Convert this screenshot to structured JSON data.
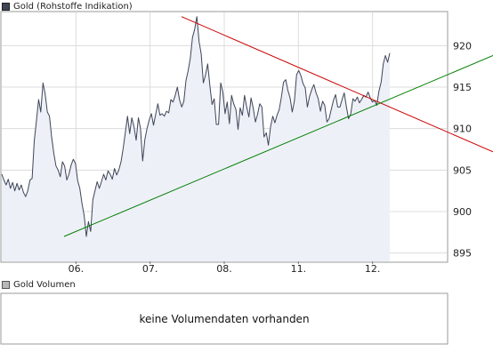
{
  "price_legend": {
    "label": "Gold (Rohstoffe Indikation)",
    "color": "#3d4557"
  },
  "volume_legend": {
    "label": "Gold Volumen",
    "color": "#b8b8b8"
  },
  "volume_message": "keine Volumendaten vorhanden",
  "chart_data": {
    "type": "line",
    "title": "",
    "xlabel": "",
    "ylabel": "",
    "x_tick_labels": [
      "06.",
      "07.",
      "08.",
      "11.",
      "12."
    ],
    "y_ticks": [
      895,
      900,
      905,
      910,
      915,
      920
    ],
    "ylim": [
      894,
      924
    ],
    "grid": true,
    "series": [
      {
        "values": [
          904.5,
          903.8,
          903.2,
          903.9,
          902.8,
          903.5,
          902.5,
          903.4,
          902.6,
          903.2,
          902.3,
          901.8,
          902.5,
          903.8,
          904.0,
          908.5,
          911.0,
          913.5,
          912.0,
          915.5,
          914.2,
          912.0,
          911.5,
          909.0,
          907.0,
          905.5,
          905.0,
          904.2,
          906.0,
          905.5,
          903.8,
          904.5,
          905.6,
          906.3,
          905.8,
          903.7,
          902.8,
          901.0,
          899.5,
          897.0,
          898.8,
          897.6,
          901.4,
          902.5,
          903.6,
          902.8,
          903.6,
          904.5,
          903.8,
          904.9,
          904.5,
          903.9,
          905.2,
          904.4,
          905.0,
          906.0,
          907.6,
          909.5,
          911.5,
          909.4,
          911.3,
          910.2,
          908.6,
          911.3,
          910.0,
          906.1,
          908.7,
          910.0,
          911.0,
          911.8,
          910.4,
          911.7,
          913.0,
          911.6,
          911.8,
          911.5,
          912.1,
          911.9,
          913.5,
          913.2,
          914.0,
          915.0,
          913.5,
          912.6,
          913.3,
          915.8,
          917.0,
          918.5,
          921.0,
          922.0,
          923.5,
          920.5,
          919.0,
          915.5,
          916.5,
          917.8,
          915.2,
          912.9,
          913.6,
          910.5,
          910.5,
          915.5,
          914.4,
          911.8,
          913.2,
          910.6,
          914.0,
          913.0,
          912.3,
          909.9,
          912.5,
          911.6,
          914.0,
          912.6,
          911.4,
          913.7,
          912.5,
          910.8,
          911.7,
          913.0,
          912.6,
          909.0,
          909.5,
          908.0,
          910.2,
          911.5,
          910.7,
          911.6,
          912.3,
          913.8,
          915.6,
          915.9,
          914.6,
          913.7,
          912.0,
          913.3,
          916.5,
          917.0,
          916.4,
          915.4,
          914.9,
          912.6,
          913.9,
          914.7,
          915.3,
          914.3,
          913.6,
          912.1,
          913.3,
          912.8,
          910.8,
          911.2,
          912.3,
          913.4,
          914.1,
          912.6,
          912.6,
          913.5,
          914.3,
          912.6,
          911.2,
          911.8,
          913.6,
          913.3,
          913.8,
          913.1,
          913.5,
          914.0,
          913.8,
          914.4,
          913.7,
          913.2,
          913.4,
          912.8,
          914.5,
          915.6,
          917.8,
          918.8,
          918.0,
          919.1
        ]
      }
    ],
    "trendlines": [
      {
        "color": "#cc0000",
        "from": [
          0.404,
          923.5
        ],
        "to": [
          1.0,
          907.2
        ]
      },
      {
        "color": "#008000",
        "from": [
          0.14,
          897.0
        ],
        "to": [
          1.0,
          918.8
        ]
      }
    ]
  }
}
